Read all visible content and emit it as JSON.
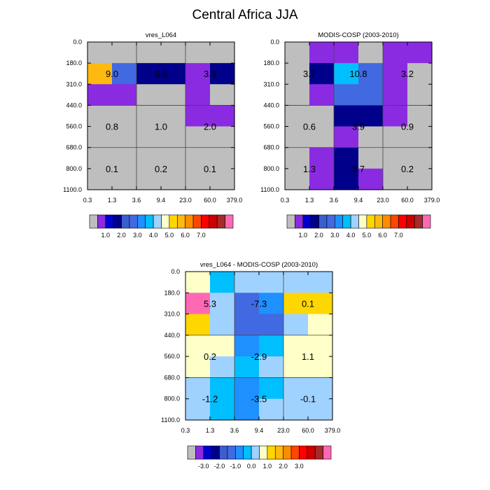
{
  "figure": {
    "title": "Central Africa JJA"
  },
  "colors": {
    "seq": [
      "#bebebe",
      "#8a2be2",
      "#0000cd",
      "#00008b",
      "#3a5fcd",
      "#4169e1",
      "#1e90ff",
      "#00bfff",
      "#a0d2ff",
      "#ffffc8",
      "#ffd700",
      "#ffb90f",
      "#ff8c00",
      "#ff4500",
      "#ff0000",
      "#cd0000",
      "#a52a2a",
      "#ff69b4"
    ],
    "gray": "#bebebe"
  },
  "chart_data": [
    {
      "type": "heatmap",
      "title": "vres_L064",
      "x_ticks": [
        "0.3",
        "1.3",
        "3.6",
        "9.4",
        "23.0",
        "60.0",
        "379.0"
      ],
      "y_ticks": [
        "0.0",
        "180.0",
        "310.0",
        "440.0",
        "560.0",
        "680.0",
        "800.0",
        "1100.0"
      ],
      "cells": [
        [
          0,
          0,
          0,
          0,
          0,
          0
        ],
        [
          11,
          5,
          3,
          3,
          1,
          3
        ],
        [
          1,
          1,
          0,
          0,
          1,
          0
        ],
        [
          0,
          0,
          0,
          0,
          1,
          1
        ],
        [
          0,
          0,
          0,
          0,
          0,
          0
        ],
        [
          0,
          0,
          0,
          0,
          0,
          0
        ],
        [
          0,
          0,
          0,
          0,
          0,
          0
        ]
      ],
      "cells_encoding": "index into colors.seq",
      "values": [
        {
          "col": 0,
          "row": 1,
          "text": "9.0"
        },
        {
          "col": 1,
          "row": 1,
          "text": "3.6"
        },
        {
          "col": 2,
          "row": 1,
          "text": "3.3"
        },
        {
          "col": 0,
          "row": 2,
          "text": "0.8"
        },
        {
          "col": 1,
          "row": 2,
          "text": "1.0"
        },
        {
          "col": 2,
          "row": 2,
          "text": "2.0"
        },
        {
          "col": 0,
          "row": 3,
          "text": "0.1"
        },
        {
          "col": 1,
          "row": 3,
          "text": "0.2"
        },
        {
          "col": 2,
          "row": 3,
          "text": "0.1"
        }
      ],
      "colorbar": {
        "labels": [
          "1.0",
          "2.0",
          "3.0",
          "4.0",
          "5.0",
          "6.0",
          "7.0"
        ],
        "colors": [
          "#bebebe",
          "#8a2be2",
          "#0000cd",
          "#00008b",
          "#3a5fcd",
          "#4169e1",
          "#1e90ff",
          "#00bfff",
          "#a0d2ff",
          "#ffffc8",
          "#ffd700",
          "#ffb90f",
          "#ff8c00",
          "#ff4500",
          "#ff0000",
          "#cd0000",
          "#a52a2a",
          "#ff69b4"
        ]
      }
    },
    {
      "type": "heatmap",
      "title": "MODIS-COSP (2003-2010)",
      "x_ticks": [
        "0.3",
        "1.3",
        "3.6",
        "9.4",
        "23.0",
        "60.0",
        "379.0"
      ],
      "y_ticks": [
        "0.0",
        "180.0",
        "310.0",
        "440.0",
        "560.0",
        "680.0",
        "800.0",
        "1100.0"
      ],
      "cells": [
        [
          0,
          1,
          1,
          0,
          1,
          1
        ],
        [
          0,
          3,
          7,
          5,
          1,
          0
        ],
        [
          0,
          1,
          5,
          5,
          1,
          0
        ],
        [
          0,
          0,
          3,
          3,
          1,
          0
        ],
        [
          0,
          0,
          1,
          0,
          0,
          0
        ],
        [
          0,
          1,
          3,
          0,
          0,
          0
        ],
        [
          0,
          1,
          3,
          1,
          0,
          0
        ]
      ],
      "cells_encoding": "index into colors.seq",
      "values": [
        {
          "col": 0,
          "row": 1,
          "text": "3.7"
        },
        {
          "col": 1,
          "row": 1,
          "text": "10.8"
        },
        {
          "col": 2,
          "row": 1,
          "text": "3.2"
        },
        {
          "col": 0,
          "row": 2,
          "text": "0.6"
        },
        {
          "col": 1,
          "row": 2,
          "text": "3.9"
        },
        {
          "col": 2,
          "row": 2,
          "text": "0.9"
        },
        {
          "col": 0,
          "row": 3,
          "text": "1.3"
        },
        {
          "col": 1,
          "row": 3,
          "text": "3.7"
        },
        {
          "col": 2,
          "row": 3,
          "text": "0.2"
        }
      ],
      "colorbar": {
        "labels": [
          "1.0",
          "2.0",
          "3.0",
          "4.0",
          "5.0",
          "6.0",
          "7.0"
        ],
        "colors": [
          "#bebebe",
          "#8a2be2",
          "#0000cd",
          "#00008b",
          "#3a5fcd",
          "#4169e1",
          "#1e90ff",
          "#00bfff",
          "#a0d2ff",
          "#ffffc8",
          "#ffd700",
          "#ffb90f",
          "#ff8c00",
          "#ff4500",
          "#ff0000",
          "#cd0000",
          "#a52a2a",
          "#ff69b4"
        ]
      }
    },
    {
      "type": "heatmap",
      "title": "vres_L064 - MODIS-COSP (2003-2010)",
      "x_ticks": [
        "0.3",
        "1.3",
        "3.6",
        "9.4",
        "23.0",
        "60.0",
        "379.0"
      ],
      "y_ticks": [
        "0.0",
        "180.0",
        "310.0",
        "440.0",
        "560.0",
        "680.0",
        "800.0",
        "1100.0"
      ],
      "cells": [
        [
          9,
          7,
          8,
          8,
          8,
          8
        ],
        [
          17,
          8,
          5,
          6,
          10,
          10
        ],
        [
          10,
          8,
          5,
          5,
          8,
          9
        ],
        [
          9,
          9,
          6,
          7,
          9,
          9
        ],
        [
          9,
          8,
          7,
          8,
          9,
          9
        ],
        [
          8,
          7,
          6,
          7,
          8,
          8
        ],
        [
          8,
          7,
          6,
          8,
          8,
          8
        ]
      ],
      "cells_encoding": "index into colors.seq",
      "values": [
        {
          "col": 0,
          "row": 1,
          "text": "5.3"
        },
        {
          "col": 1,
          "row": 1,
          "text": "-7.3"
        },
        {
          "col": 2,
          "row": 1,
          "text": "0.1"
        },
        {
          "col": 0,
          "row": 2,
          "text": "0.2"
        },
        {
          "col": 1,
          "row": 2,
          "text": "-2.9"
        },
        {
          "col": 2,
          "row": 2,
          "text": "1.1"
        },
        {
          "col": 0,
          "row": 3,
          "text": "-1.2"
        },
        {
          "col": 1,
          "row": 3,
          "text": "-3.5"
        },
        {
          "col": 2,
          "row": 3,
          "text": "-0.1"
        }
      ],
      "colorbar": {
        "labels": [
          "-3.0",
          "-2.0",
          "-1.0",
          "0.0",
          "1.0",
          "2.0",
          "3.0"
        ],
        "colors": [
          "#bebebe",
          "#8a2be2",
          "#0000cd",
          "#00008b",
          "#3a5fcd",
          "#4169e1",
          "#1e90ff",
          "#00bfff",
          "#a0d2ff",
          "#ffffc8",
          "#ffd700",
          "#ffb90f",
          "#ff8c00",
          "#ff4500",
          "#ff0000",
          "#cd0000",
          "#a52a2a",
          "#ff69b4"
        ]
      }
    }
  ]
}
